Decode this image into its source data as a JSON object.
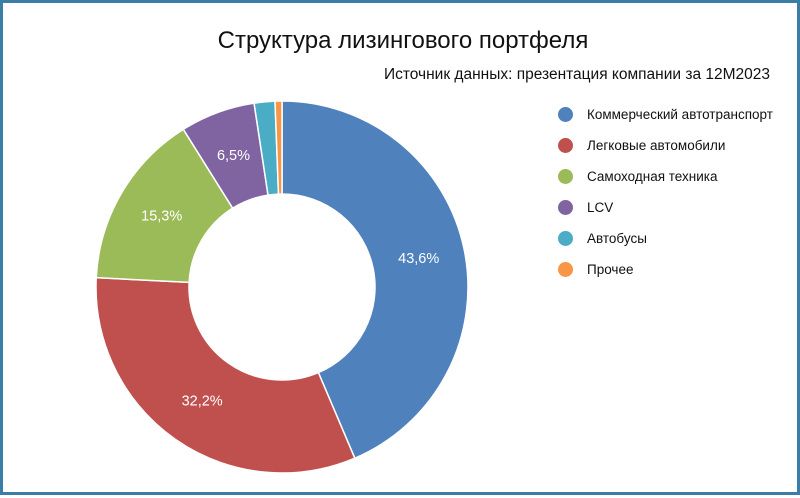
{
  "chart_data": {
    "type": "pie",
    "title": "Структура лизингового портфеля",
    "subtitle": "Источник данных: презентация компании за 12М2023",
    "legend_position": "right",
    "donut": true,
    "categories": [
      "Коммерческий автотранспорт",
      "Легковые автомобили",
      "Самоходная техника",
      "LCV",
      "Автобусы",
      "Прочее"
    ],
    "values": [
      43.6,
      32.2,
      15.3,
      6.5,
      1.8,
      0.6
    ],
    "labels": [
      "43,6%",
      "32,2%",
      "15,3%",
      "6,5%",
      "",
      ""
    ],
    "colors": [
      "#4f81bd",
      "#c0504d",
      "#9bbb59",
      "#8064a2",
      "#4bacc6",
      "#f79646"
    ]
  }
}
